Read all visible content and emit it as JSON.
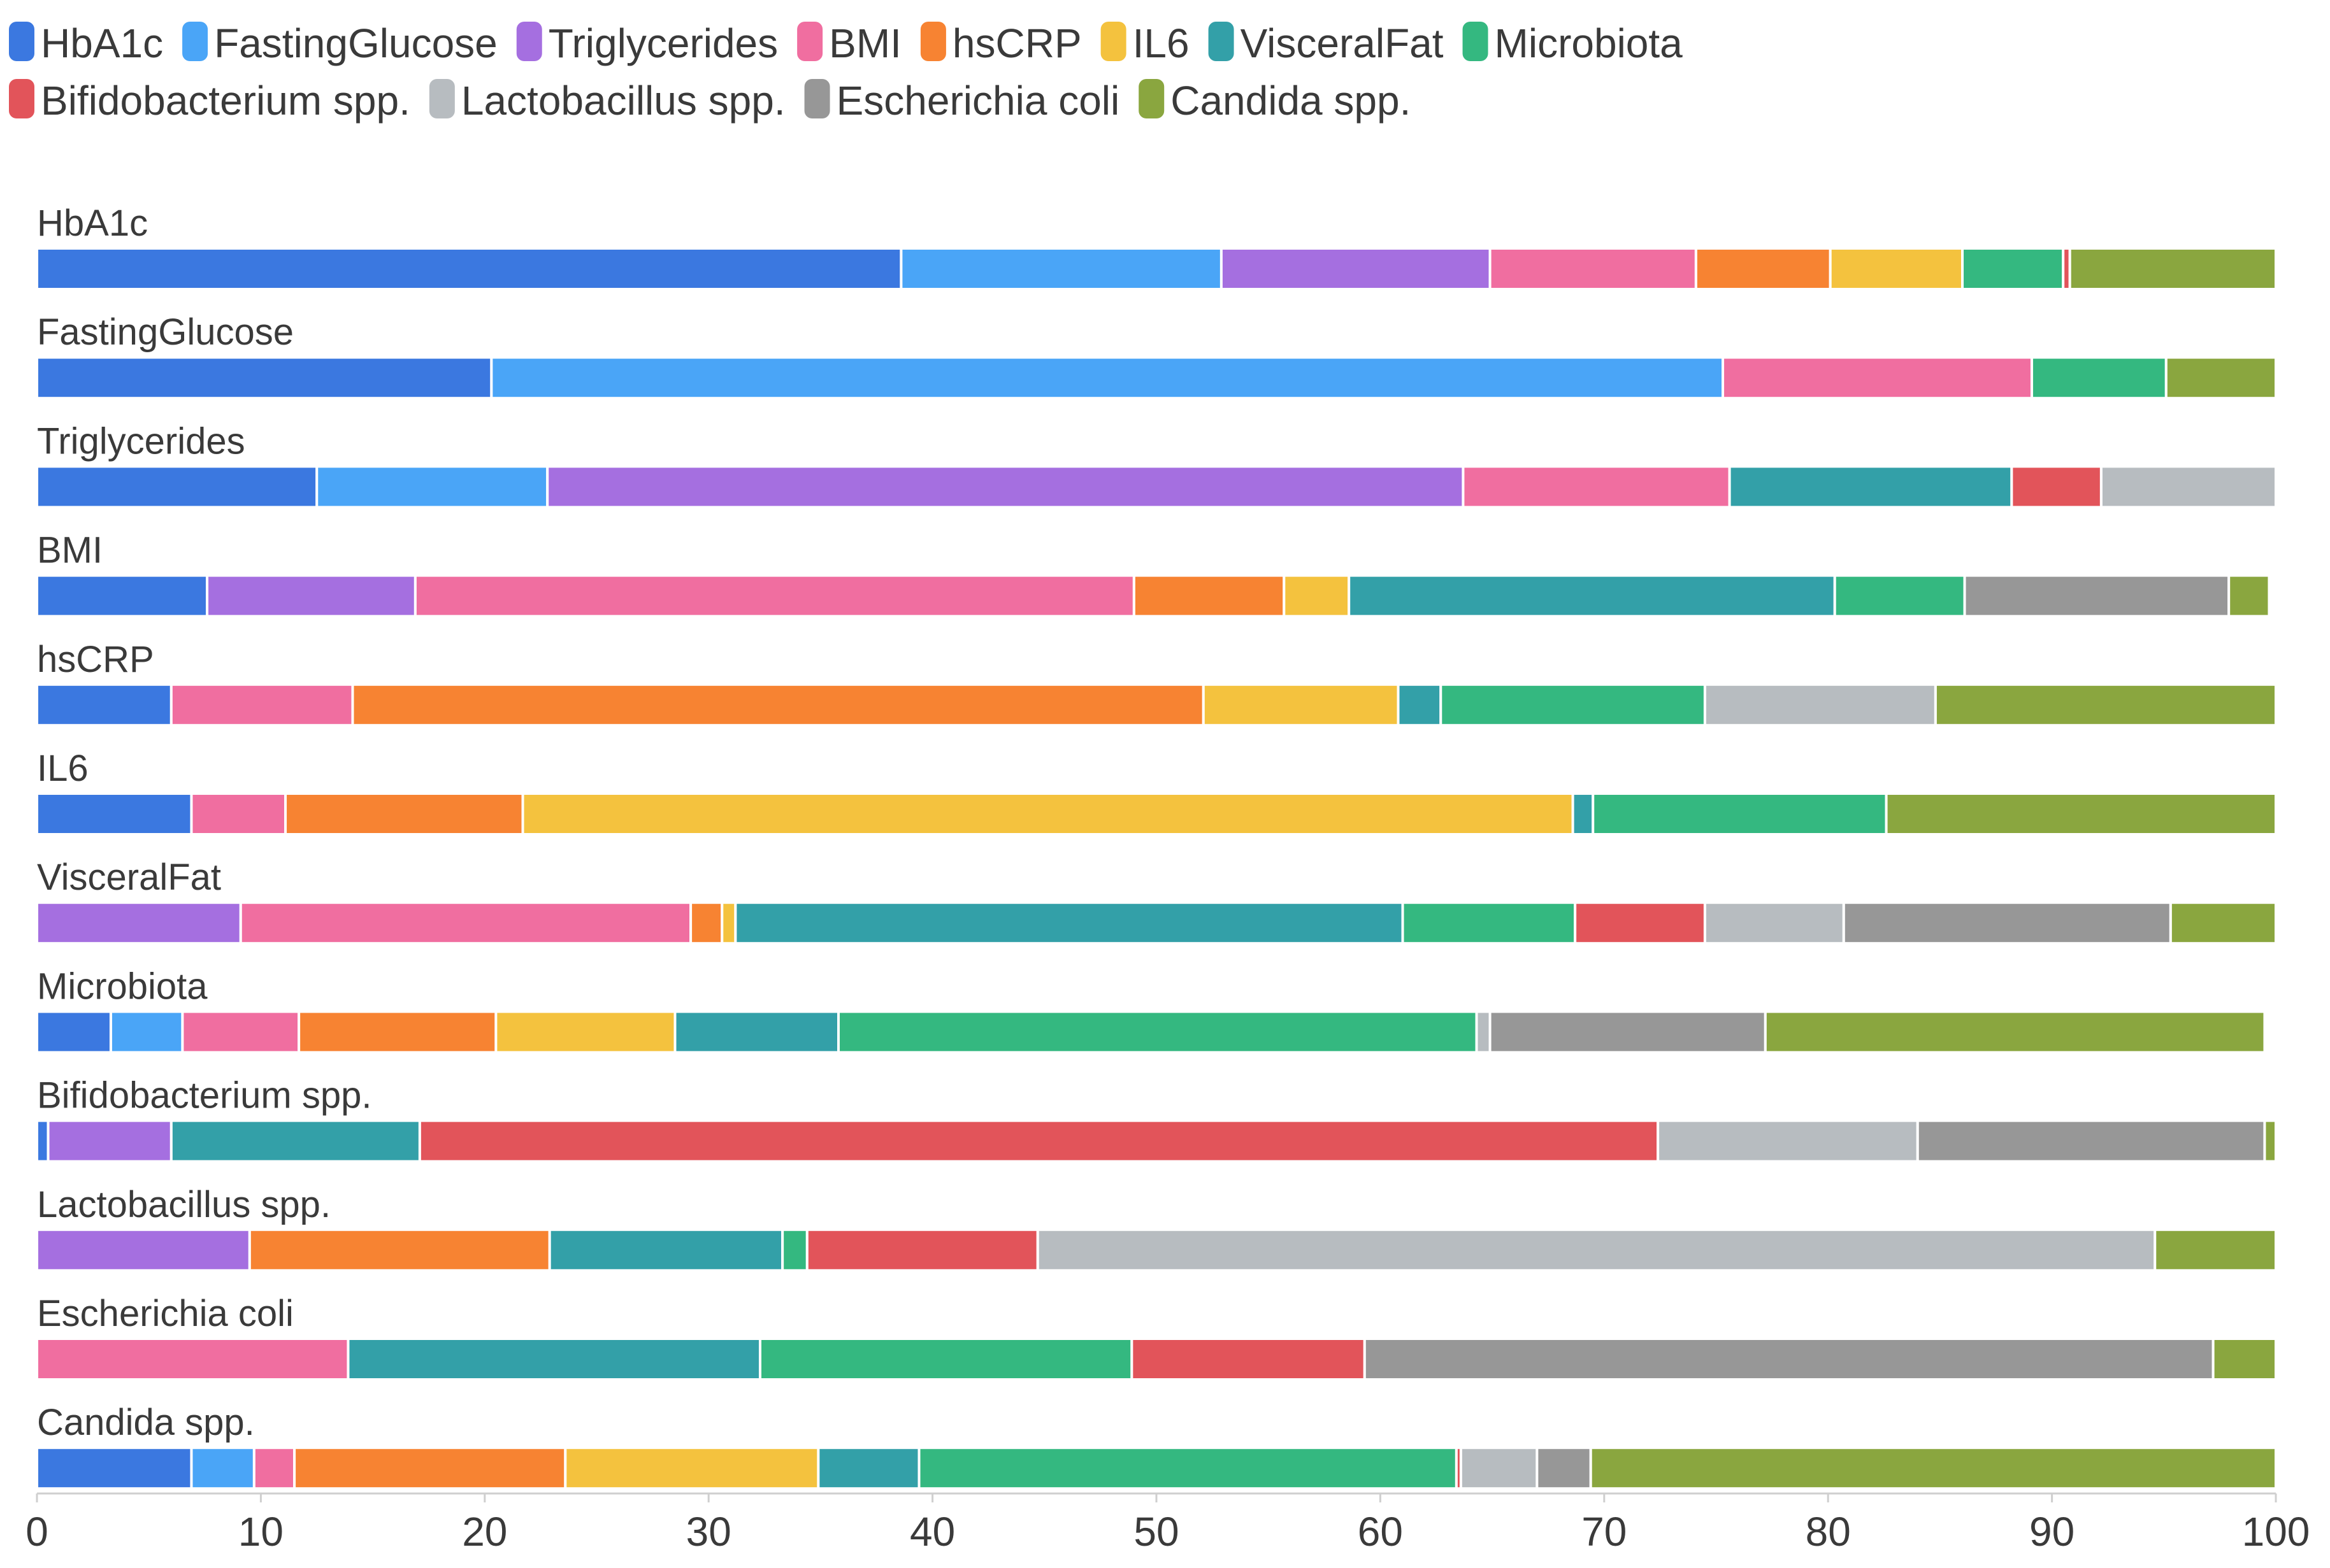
{
  "chart_data": {
    "type": "bar",
    "orientation": "horizontal",
    "stacked": true,
    "legend_position": "top-left",
    "xlim": [
      0,
      100
    ],
    "xticks": [
      0,
      10,
      20,
      30,
      40,
      50,
      60,
      70,
      80,
      90,
      100
    ],
    "xlabel": "",
    "ylabel": "",
    "grid": false,
    "categories": [
      "HbA1c",
      "FastingGlucose",
      "Triglycerides",
      "BMI",
      "hsCRP",
      "IL6",
      "VisceralFat",
      "Microbiota",
      "Bifidobacterium spp.",
      "Lactobacillus spp.",
      "Escherichia coli",
      "Candida spp."
    ],
    "series": [
      {
        "name": "HbA1c",
        "color": "#3b78e0",
        "values": [
          38.6,
          20.3,
          12.5,
          7.6,
          6.0,
          6.9,
          0,
          3.3,
          0.5,
          0,
          0,
          6.9
        ]
      },
      {
        "name": "FastingGlucose",
        "color": "#4aa5f7",
        "values": [
          14.3,
          55.0,
          10.3,
          0,
          0,
          0,
          0,
          3.2,
          0,
          0,
          0,
          2.8
        ]
      },
      {
        "name": "Triglycerides",
        "color": "#a56fe0",
        "values": [
          12.0,
          0,
          40.9,
          9.3,
          0,
          0,
          9.1,
          0,
          5.5,
          9.5,
          0,
          0
        ]
      },
      {
        "name": "BMI",
        "color": "#f06ea0",
        "values": [
          9.2,
          13.8,
          11.9,
          32.1,
          8.1,
          4.2,
          20.1,
          5.2,
          0,
          0,
          13.9,
          1.8
        ]
      },
      {
        "name": "hsCRP",
        "color": "#f78332",
        "values": [
          6.0,
          0,
          0,
          6.7,
          38.0,
          10.6,
          1.4,
          8.8,
          0,
          13.4,
          0,
          12.1
        ]
      },
      {
        "name": "IL6",
        "color": "#f4c23e",
        "values": [
          5.9,
          0,
          0,
          2.9,
          8.7,
          46.9,
          0.6,
          8.0,
          0,
          0,
          0,
          11.3
        ]
      },
      {
        "name": "VisceralFat",
        "color": "#33a0a8",
        "values": [
          0,
          0,
          12.6,
          21.7,
          1.9,
          0.9,
          29.8,
          7.3,
          11.1,
          10.4,
          18.4,
          4.5
        ]
      },
      {
        "name": "Microbiota",
        "color": "#34b880",
        "values": [
          4.5,
          6.0,
          0,
          5.8,
          11.8,
          13.1,
          7.7,
          28.5,
          0,
          1.1,
          16.6,
          24.0
        ]
      },
      {
        "name": "Bifidobacterium spp.",
        "color": "#e2545a",
        "values": [
          0.3,
          0,
          4.0,
          0,
          0,
          0,
          5.8,
          0,
          55.3,
          10.3,
          10.4,
          0.2
        ]
      },
      {
        "name": "Lactobacillus spp.",
        "color": "#b7bcc0",
        "values": [
          0,
          0,
          7.8,
          0,
          10.3,
          0,
          6.2,
          0.6,
          11.6,
          49.9,
          0,
          3.4
        ]
      },
      {
        "name": "Escherichia coli",
        "color": "#979797",
        "values": [
          0,
          0,
          0,
          11.8,
          0,
          0,
          14.6,
          12.3,
          15.5,
          0,
          37.9,
          2.4
        ]
      },
      {
        "name": "Candida spp.",
        "color": "#8aa63f",
        "values": [
          9.2,
          4.9,
          0,
          1.8,
          15.2,
          17.4,
          4.7,
          22.3,
          0.5,
          5.4,
          2.8,
          30.6
        ]
      }
    ]
  }
}
